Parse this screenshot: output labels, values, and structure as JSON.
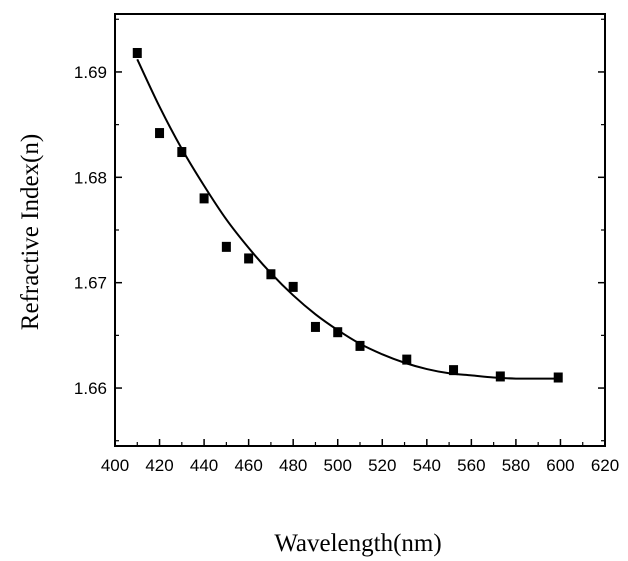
{
  "chart_data": {
    "type": "scatter",
    "xlabel": "Wavelength(nm)",
    "ylabel": "Refractive Index(n)",
    "xlim": [
      400,
      620
    ],
    "ylim": [
      1.6545,
      1.6955
    ],
    "x_ticks": [
      "400",
      "420",
      "440",
      "460",
      "480",
      "500",
      "520",
      "540",
      "560",
      "580",
      "600",
      "620"
    ],
    "y_ticks": [
      "1.66",
      "1.67",
      "1.68",
      "1.69"
    ],
    "grid": false,
    "legend": "none",
    "series": [
      {
        "kind": "points",
        "marker": "filled-square",
        "color": "#000000",
        "x": [
          410,
          420,
          430,
          440,
          450,
          460,
          470,
          480,
          490,
          500,
          510,
          531,
          552,
          573,
          599
        ],
        "y": [
          1.6918,
          1.6842,
          1.6824,
          1.678,
          1.6734,
          1.6723,
          1.6708,
          1.6696,
          1.6658,
          1.6653,
          1.664,
          1.6627,
          1.6617,
          1.6611,
          1.661
        ]
      },
      {
        "kind": "fit-line",
        "color": "#000000",
        "x": [
          410,
          420,
          430,
          440,
          450,
          460,
          470,
          480,
          490,
          500,
          510,
          520,
          530,
          540,
          550,
          560,
          570,
          580,
          590,
          600
        ],
        "y": [
          1.6912,
          1.6867,
          1.6827,
          1.6792,
          1.676,
          1.6733,
          1.6709,
          1.6688,
          1.667,
          1.6655,
          1.6642,
          1.6632,
          1.6624,
          1.6618,
          1.6614,
          1.6612,
          1.661,
          1.6609,
          1.6609,
          1.6609
        ]
      }
    ]
  }
}
